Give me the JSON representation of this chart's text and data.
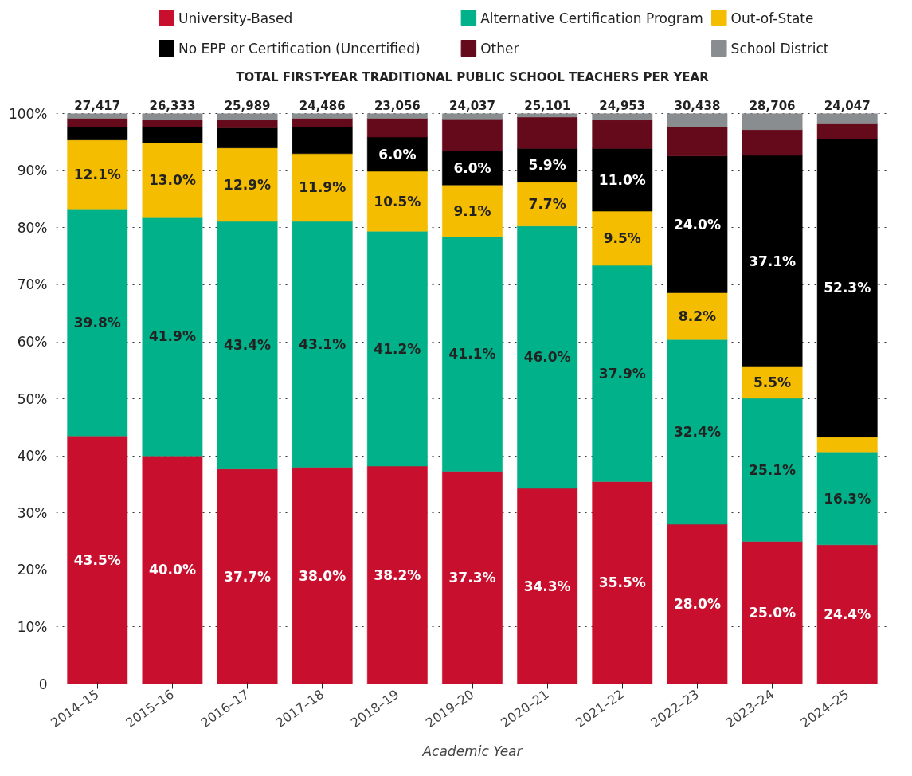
{
  "chart_data": {
    "type": "bar",
    "stacked": true,
    "title": "TOTAL FIRST-YEAR TRADITIONAL PUBLIC SCHOOL TEACHERS PER YEAR",
    "xlabel": "Academic Year",
    "categories": [
      "2014–15",
      "2015–16",
      "2016–17",
      "2017–18",
      "2018–19",
      "2019–20",
      "2020–21",
      "2021–22",
      "2022–23",
      "2023–24",
      "2024–25"
    ],
    "series": [
      {
        "name": "University-Based",
        "color": "#c8102e",
        "values": [
          43.5,
          40.0,
          37.7,
          38.0,
          38.2,
          37.3,
          34.3,
          35.5,
          28.0,
          25.0,
          24.4
        ],
        "value_labels": [
          "43.5%",
          "40.0%",
          "37.7%",
          "38.0%",
          "38.2%",
          "37.3%",
          "34.3%",
          "35.5%",
          "28.0%",
          "25.0%",
          "24.4%"
        ]
      },
      {
        "name": "Alternative Certification Program",
        "color": "#00b189",
        "values": [
          39.8,
          41.9,
          43.4,
          43.1,
          41.2,
          41.1,
          46.0,
          37.9,
          32.4,
          25.1,
          16.3
        ],
        "value_labels": [
          "39.8%",
          "41.9%",
          "43.4%",
          "43.1%",
          "41.2%",
          "41.1%",
          "46.0%",
          "37.9%",
          "32.4%",
          "25.1%",
          "16.3%"
        ]
      },
      {
        "name": "Out-of-State",
        "color": "#f4bd00",
        "values": [
          12.1,
          13.0,
          12.9,
          11.9,
          10.5,
          9.1,
          7.7,
          9.5,
          8.2,
          5.5,
          2.6
        ],
        "value_labels": [
          "12.1%",
          "13.0%",
          "12.9%",
          "11.9%",
          "10.5%",
          "9.1%",
          "7.7%",
          "9.5%",
          "8.2%",
          "5.5%",
          null
        ]
      },
      {
        "name": "No EPP or Certification (Uncertified)",
        "color": "#000000",
        "values": [
          2.3,
          2.8,
          3.5,
          4.7,
          6.0,
          6.0,
          5.9,
          11.0,
          24.0,
          37.1,
          52.3
        ],
        "value_labels": [
          null,
          null,
          null,
          null,
          "6.0%",
          "6.0%",
          "5.9%",
          "11.0%",
          "24.0%",
          "37.1%",
          "52.3%"
        ]
      },
      {
        "name": "Other",
        "color": "#640a1a",
        "values": [
          1.5,
          1.2,
          1.4,
          1.5,
          3.3,
          5.6,
          5.5,
          5.0,
          5.1,
          4.5,
          2.6
        ]
      },
      {
        "name": "School District",
        "color": "#8a8d8f",
        "values": [
          0.8,
          1.1,
          1.1,
          0.8,
          0.8,
          0.9,
          0.6,
          1.1,
          2.3,
          2.8,
          1.8
        ]
      }
    ],
    "annotations": [
      {
        "text": "27,417",
        "x": "2014–15",
        "y": 100
      },
      {
        "text": "26,333",
        "x": "2015–16",
        "y": 100
      },
      {
        "text": "25,989",
        "x": "2016–17",
        "y": 100
      },
      {
        "text": "24,486",
        "x": "2017–18",
        "y": 100
      },
      {
        "text": "23,056",
        "x": "2018–19",
        "y": 100
      },
      {
        "text": "24,037",
        "x": "2019–20",
        "y": 100
      },
      {
        "text": "25,101",
        "x": "2020–21",
        "y": 100
      },
      {
        "text": "24,953",
        "x": "2021–22",
        "y": 100
      },
      {
        "text": "30,438",
        "x": "2022–23",
        "y": 100
      },
      {
        "text": "28,706",
        "x": "2023–24",
        "y": 100
      },
      {
        "text": "24,047",
        "x": "2024–25",
        "y": 100
      }
    ],
    "ylim": [
      0,
      100
    ],
    "yticks": [
      {
        "value": 0,
        "label": "0"
      },
      {
        "value": 10,
        "label": "10%"
      },
      {
        "value": 20,
        "label": "20%"
      },
      {
        "value": 30,
        "label": "30%"
      },
      {
        "value": 40,
        "label": "40%"
      },
      {
        "value": 50,
        "label": "50%"
      },
      {
        "value": 60,
        "label": "60%"
      },
      {
        "value": 70,
        "label": "70%"
      },
      {
        "value": 80,
        "label": "80%"
      },
      {
        "value": 90,
        "label": "90%"
      },
      {
        "value": 100,
        "label": "100%"
      }
    ],
    "grid": "y",
    "legend": "top"
  }
}
